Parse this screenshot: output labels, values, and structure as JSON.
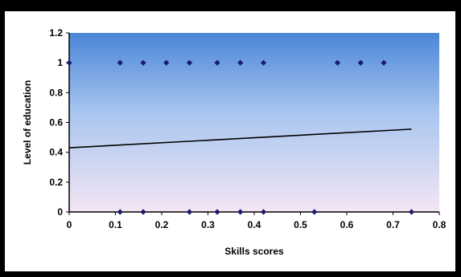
{
  "chart_data": {
    "type": "scatter",
    "title": "",
    "xlabel": "Skills scores",
    "ylabel": "Level of education",
    "xlim": [
      0,
      0.8
    ],
    "ylim": [
      0,
      1.2
    ],
    "x_ticks": [
      "0",
      "0.1",
      "0.2",
      "0.3",
      "0.4",
      "0.5",
      "0.6",
      "0.7",
      "0.8"
    ],
    "y_ticks": [
      "0",
      "0.2",
      "0.4",
      "0.6",
      "0.8",
      "1",
      "1.2"
    ],
    "grid": false,
    "legend": "none",
    "series": [
      {
        "points": [
          {
            "x": 0,
            "y": 1
          },
          {
            "x": 0.11,
            "y": 1
          },
          {
            "x": 0.16,
            "y": 1
          },
          {
            "x": 0.21,
            "y": 1
          },
          {
            "x": 0.26,
            "y": 1
          },
          {
            "x": 0.32,
            "y": 1
          },
          {
            "x": 0.37,
            "y": 1
          },
          {
            "x": 0.42,
            "y": 1
          },
          {
            "x": 0.58,
            "y": 1
          },
          {
            "x": 0.63,
            "y": 1
          },
          {
            "x": 0.68,
            "y": 1
          },
          {
            "x": 0.11,
            "y": 0
          },
          {
            "x": 0.16,
            "y": 0
          },
          {
            "x": 0.26,
            "y": 0
          },
          {
            "x": 0.32,
            "y": 0
          },
          {
            "x": 0.37,
            "y": 0
          },
          {
            "x": 0.42,
            "y": 0
          },
          {
            "x": 0.53,
            "y": 0
          },
          {
            "x": 0.74,
            "y": 0
          }
        ]
      }
    ],
    "trendline": {
      "x": [
        0,
        0.74
      ],
      "y": [
        0.43,
        0.555
      ]
    },
    "colors": {
      "marker": "#1a1a6e",
      "trendline": "#000000",
      "plot_top": "#4a86d8",
      "plot_bottom": "#f4e6f4"
    }
  }
}
